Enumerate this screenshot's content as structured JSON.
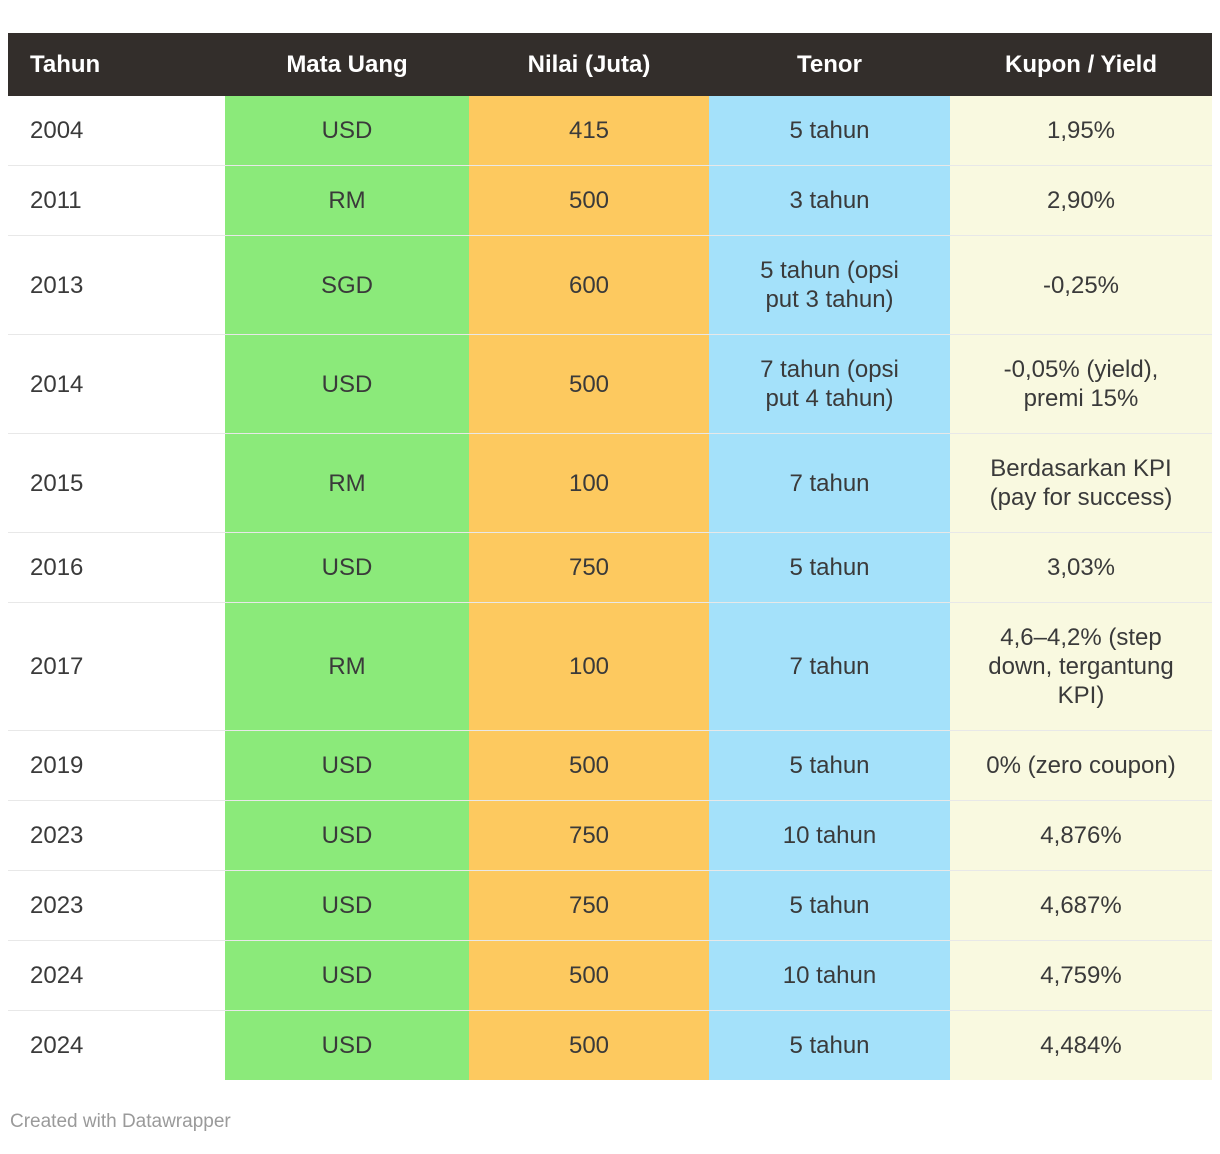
{
  "chart_data": {
    "type": "table",
    "title": "",
    "columns": [
      {
        "key": "tahun",
        "label": "Tahun"
      },
      {
        "key": "mata-uang",
        "label": "Mata Uang"
      },
      {
        "key": "nilai-juta",
        "label": "Nilai (Juta)"
      },
      {
        "key": "tenor",
        "label": "Tenor"
      },
      {
        "key": "kupon-yield",
        "label": "Kupon / Yield"
      }
    ],
    "rows": [
      {
        "cells": [
          "2004",
          "USD",
          "415",
          "5 tahun",
          "1,95%"
        ]
      },
      {
        "cells": [
          "2011",
          "RM",
          "500",
          "3 tahun",
          "2,90%"
        ]
      },
      {
        "cells": [
          "2013",
          "SGD",
          "600",
          "5 tahun (opsi put 3 tahun)",
          "-0,25%"
        ]
      },
      {
        "cells": [
          "2014",
          "USD",
          "500",
          "7 tahun (opsi put 4 tahun)",
          "-0,05% (yield), premi 15%"
        ]
      },
      {
        "cells": [
          "2015",
          "RM",
          "100",
          "7 tahun",
          "Berdasarkan KPI (pay for success)"
        ]
      },
      {
        "cells": [
          "2016",
          "USD",
          "750",
          "5 tahun",
          "3,03%"
        ]
      },
      {
        "cells": [
          "2017",
          "RM",
          "100",
          "7 tahun",
          "4,6–4,2% (step down, tergantung KPI)"
        ]
      },
      {
        "cells": [
          "2019",
          "USD",
          "500",
          "5 tahun",
          "0% (zero coupon)"
        ]
      },
      {
        "cells": [
          "2023",
          "USD",
          "750",
          "10 tahun",
          "4,876%"
        ]
      },
      {
        "cells": [
          "2023",
          "USD",
          "750",
          "5 tahun",
          "4,687%"
        ]
      },
      {
        "cells": [
          "2024",
          "USD",
          "500",
          "10 tahun",
          "4,759%"
        ]
      },
      {
        "cells": [
          "2024",
          "USD",
          "500",
          "5 tahun",
          "4,484%"
        ]
      }
    ],
    "layout": {
      "header_alignment": [
        "left",
        "center",
        "center",
        "center",
        "center"
      ],
      "body_alignment": [
        "left",
        "center",
        "center",
        "center",
        "center"
      ],
      "column_backgrounds": [
        "none",
        "green",
        "orange",
        "blue",
        "cream"
      ]
    }
  },
  "colors": {
    "header-bg": "#332e2b",
    "header-text": "#ffffff",
    "cell-text": "#3a3a3a",
    "col-green": "#8bea7a",
    "col-orange": "#fdc95f",
    "col-blue": "#a4e1fa",
    "col-cream": "#f9f9e0",
    "divider": "#e8e8e8",
    "footer-text": "#9a9a9a",
    "page-bg": "#ffffff"
  },
  "footer": {
    "credit": "Created with Datawrapper"
  }
}
